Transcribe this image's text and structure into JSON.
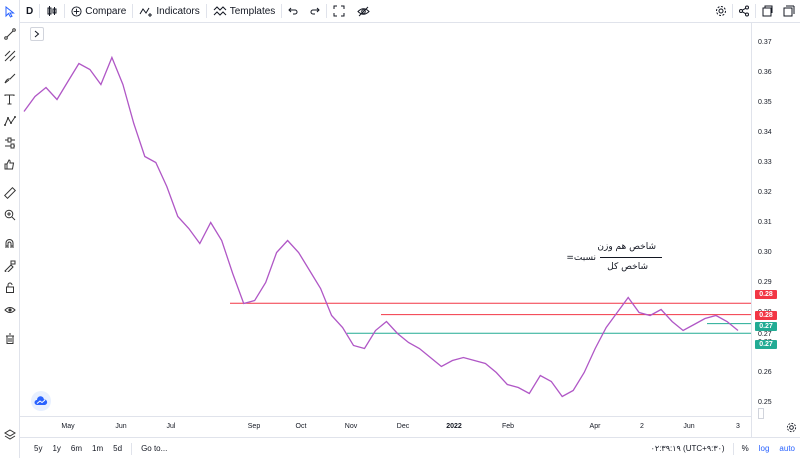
{
  "toolbar": {
    "interval": "D",
    "compare": "Compare",
    "indicators": "Indicators",
    "templates": "Templates"
  },
  "price_axis": {
    "labels": [
      "0.37",
      "0.36",
      "0.35",
      "0.34",
      "0.33",
      "0.32",
      "0.31",
      "0.30",
      "0.29",
      "0.28",
      "0.27",
      "0.26",
      "0.25"
    ],
    "price_tags": [
      {
        "text": "0.28",
        "color": "#f23645"
      },
      {
        "text": "0.28",
        "color": "#f23645"
      },
      {
        "text": "0.27",
        "color": "#22ab94"
      },
      {
        "text": "0.27",
        "color": "#22ab94"
      }
    ],
    "overlap_tag": "0.27"
  },
  "time_axis": {
    "labels": [
      "May",
      "Jun",
      "Jul",
      "Sep",
      "Oct",
      "Nov",
      "Dec",
      "2022",
      "Feb",
      "Apr",
      "2",
      "Jun",
      "3"
    ]
  },
  "annotation": {
    "numerator": "شاخص هم وزن",
    "prefix": "نسبت=",
    "denominator": "شاخص کل"
  },
  "bottom": {
    "ranges": [
      "5y",
      "1y",
      "6m",
      "1m",
      "5d"
    ],
    "goto": "Go to...",
    "time": "۰۲:۳۹:۱۹ (UTC+۹:۳۰)",
    "percent": "%",
    "log": "log",
    "auto": "auto"
  },
  "colors": {
    "line": "#b057c6",
    "resistance": "#f23645",
    "support": "#22ab94"
  },
  "chart_data": {
    "type": "line",
    "series": [
      {
        "values": [
          0.347,
          0.352,
          0.355,
          0.351,
          0.357,
          0.363,
          0.361,
          0.356,
          0.365,
          0.356,
          0.343,
          0.332,
          0.33,
          0.322,
          0.312,
          0.308,
          0.303,
          0.31,
          0.304,
          0.293,
          0.283,
          0.284,
          0.29,
          0.3,
          0.304,
          0.3,
          0.294,
          0.288,
          0.279,
          0.275,
          0.269,
          0.268,
          0.274,
          0.277,
          0.273,
          0.27,
          0.268,
          0.265,
          0.262,
          0.264,
          0.265,
          0.264,
          0.263,
          0.26,
          0.256,
          0.255,
          0.253,
          0.259,
          0.257,
          0.252,
          0.254,
          0.26,
          0.268,
          0.275,
          0.28,
          0.285,
          0.28,
          0.279,
          0.281,
          0.277,
          0.274,
          0.276,
          0.278,
          0.279,
          0.277,
          0.274
        ]
      }
    ],
    "hlines": [
      {
        "y": 0.2831,
        "color": "#f23645"
      },
      {
        "y": 0.2793,
        "color": "#f23645"
      },
      {
        "y": 0.2763,
        "color": "#22ab94"
      },
      {
        "y": 0.2731,
        "color": "#22ab94"
      }
    ],
    "ylim": [
      0.2455,
      0.3765
    ],
    "grid": false
  }
}
